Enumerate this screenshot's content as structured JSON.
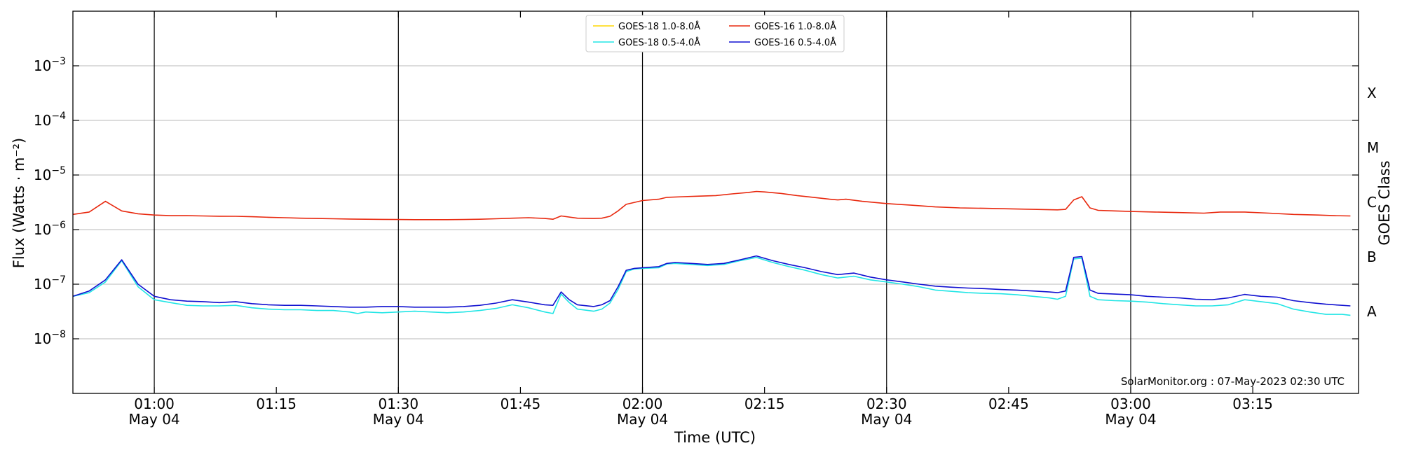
{
  "chart_data": {
    "type": "line",
    "xlabel": "Time (UTC)",
    "ylabel": "Flux (Watts · m⁻²)",
    "ylabel_right": "GOES Class",
    "yscale": "log",
    "ylim": [
      1e-09,
      0.01
    ],
    "xlim": [
      "00:50",
      "03:28"
    ],
    "y_ticks": [
      {
        "value": 1e-08,
        "base": "10",
        "exp": "−8"
      },
      {
        "value": 1e-07,
        "base": "10",
        "exp": "−7"
      },
      {
        "value": 1e-06,
        "base": "10",
        "exp": "−6"
      },
      {
        "value": 1e-05,
        "base": "10",
        "exp": "−5"
      },
      {
        "value": 0.0001,
        "base": "10",
        "exp": "−4"
      },
      {
        "value": 0.001,
        "base": "10",
        "exp": "−3"
      }
    ],
    "x_ticks": [
      {
        "time": "01:00",
        "label": "01:00",
        "date": "May 04",
        "vline": true
      },
      {
        "time": "01:15",
        "label": "01:15",
        "date": "",
        "vline": false
      },
      {
        "time": "01:30",
        "label": "01:30",
        "date": "May 04",
        "vline": true
      },
      {
        "time": "01:45",
        "label": "01:45",
        "date": "",
        "vline": false
      },
      {
        "time": "02:00",
        "label": "02:00",
        "date": "May 04",
        "vline": true
      },
      {
        "time": "02:15",
        "label": "02:15",
        "date": "",
        "vline": false
      },
      {
        "time": "02:30",
        "label": "02:30",
        "date": "May 04",
        "vline": true
      },
      {
        "time": "02:45",
        "label": "02:45",
        "date": "",
        "vline": false
      },
      {
        "time": "03:00",
        "label": "03:00",
        "date": "May 04",
        "vline": true
      },
      {
        "time": "03:15",
        "label": "03:15",
        "date": "",
        "vline": false
      }
    ],
    "goes_classes": [
      {
        "label": "A",
        "value": 3.16e-08
      },
      {
        "label": "B",
        "value": 3.16e-07
      },
      {
        "label": "C",
        "value": 3.16e-06
      },
      {
        "label": "M",
        "value": 3.16e-05
      },
      {
        "label": "X",
        "value": 0.000316
      }
    ],
    "grid": true,
    "legend_position": "top-center",
    "annotation": "SolarMonitor.org : 07-May-2023 02:30 UTC",
    "series": [
      {
        "name": "GOES-18 1.0-8.0Å",
        "color": "#ffd700",
        "points": []
      },
      {
        "name": "GOES-18 0.5-4.0Å",
        "color": "#22e5e5",
        "points": [
          [
            "00:50",
            6e-08
          ],
          [
            "00:52",
            7e-08
          ],
          [
            "00:54",
            1.1e-07
          ],
          [
            "00:56",
            2.7e-07
          ],
          [
            "00:58",
            9e-08
          ],
          [
            "01:00",
            5.2e-08
          ],
          [
            "01:02",
            4.6e-08
          ],
          [
            "01:04",
            4.1e-08
          ],
          [
            "01:06",
            4e-08
          ],
          [
            "01:08",
            4e-08
          ],
          [
            "01:10",
            4.1e-08
          ],
          [
            "01:12",
            3.7e-08
          ],
          [
            "01:14",
            3.5e-08
          ],
          [
            "01:16",
            3.4e-08
          ],
          [
            "01:18",
            3.4e-08
          ],
          [
            "01:20",
            3.3e-08
          ],
          [
            "01:22",
            3.3e-08
          ],
          [
            "01:24",
            3.1e-08
          ],
          [
            "01:25",
            2.9e-08
          ],
          [
            "01:26",
            3.1e-08
          ],
          [
            "01:28",
            3e-08
          ],
          [
            "01:30",
            3.1e-08
          ],
          [
            "01:32",
            3.2e-08
          ],
          [
            "01:34",
            3.1e-08
          ],
          [
            "01:36",
            3e-08
          ],
          [
            "01:38",
            3.1e-08
          ],
          [
            "01:40",
            3.3e-08
          ],
          [
            "01:42",
            3.6e-08
          ],
          [
            "01:44",
            4.2e-08
          ],
          [
            "01:46",
            3.7e-08
          ],
          [
            "01:48",
            3.1e-08
          ],
          [
            "01:49",
            2.9e-08
          ],
          [
            "01:50",
            6.6e-08
          ],
          [
            "01:51",
            4.6e-08
          ],
          [
            "01:52",
            3.5e-08
          ],
          [
            "01:54",
            3.2e-08
          ],
          [
            "01:55",
            3.5e-08
          ],
          [
            "01:56",
            4.5e-08
          ],
          [
            "01:57",
            8e-08
          ],
          [
            "01:58",
            1.7e-07
          ],
          [
            "01:59",
            1.9e-07
          ],
          [
            "02:00",
            1.95e-07
          ],
          [
            "02:02",
            2e-07
          ],
          [
            "02:03",
            2.35e-07
          ],
          [
            "02:04",
            2.4e-07
          ],
          [
            "02:06",
            2.3e-07
          ],
          [
            "02:08",
            2.2e-07
          ],
          [
            "02:10",
            2.3e-07
          ],
          [
            "02:12",
            2.7e-07
          ],
          [
            "02:14",
            3.1e-07
          ],
          [
            "02:16",
            2.5e-07
          ],
          [
            "02:18",
            2.1e-07
          ],
          [
            "02:20",
            1.8e-07
          ],
          [
            "02:22",
            1.5e-07
          ],
          [
            "02:24",
            1.3e-07
          ],
          [
            "02:26",
            1.4e-07
          ],
          [
            "02:28",
            1.2e-07
          ],
          [
            "02:30",
            1.1e-07
          ],
          [
            "02:32",
            1e-07
          ],
          [
            "02:34",
            9e-08
          ],
          [
            "02:36",
            7.8e-08
          ],
          [
            "02:38",
            7.4e-08
          ],
          [
            "02:40",
            7e-08
          ],
          [
            "02:42",
            6.8e-08
          ],
          [
            "02:44",
            6.7e-08
          ],
          [
            "02:46",
            6.4e-08
          ],
          [
            "02:48",
            6e-08
          ],
          [
            "02:50",
            5.6e-08
          ],
          [
            "02:51",
            5.3e-08
          ],
          [
            "02:52",
            6e-08
          ],
          [
            "02:53",
            2.9e-07
          ],
          [
            "02:54",
            3e-07
          ],
          [
            "02:55",
            6e-08
          ],
          [
            "02:56",
            5.2e-08
          ],
          [
            "02:58",
            5e-08
          ],
          [
            "03:00",
            4.9e-08
          ],
          [
            "03:02",
            4.7e-08
          ],
          [
            "03:04",
            4.4e-08
          ],
          [
            "03:06",
            4.2e-08
          ],
          [
            "03:08",
            4e-08
          ],
          [
            "03:10",
            4e-08
          ],
          [
            "03:12",
            4.2e-08
          ],
          [
            "03:14",
            5.2e-08
          ],
          [
            "03:16",
            4.8e-08
          ],
          [
            "03:18",
            4.4e-08
          ],
          [
            "03:20",
            3.5e-08
          ],
          [
            "03:22",
            3.1e-08
          ],
          [
            "03:24",
            2.8e-08
          ],
          [
            "03:26",
            2.8e-08
          ],
          [
            "03:27",
            2.7e-08
          ]
        ]
      },
      {
        "name": "GOES-16 1.0-8.0Å",
        "color": "#e8280e",
        "points": [
          [
            "00:50",
            1.9e-06
          ],
          [
            "00:52",
            2.1e-06
          ],
          [
            "00:54",
            3.3e-06
          ],
          [
            "00:56",
            2.2e-06
          ],
          [
            "00:58",
            1.95e-06
          ],
          [
            "01:00",
            1.85e-06
          ],
          [
            "01:02",
            1.8e-06
          ],
          [
            "01:04",
            1.8e-06
          ],
          [
            "01:06",
            1.78e-06
          ],
          [
            "01:08",
            1.76e-06
          ],
          [
            "01:10",
            1.75e-06
          ],
          [
            "01:12",
            1.72e-06
          ],
          [
            "01:14",
            1.68e-06
          ],
          [
            "01:16",
            1.65e-06
          ],
          [
            "01:18",
            1.62e-06
          ],
          [
            "01:20",
            1.6e-06
          ],
          [
            "01:22",
            1.58e-06
          ],
          [
            "01:24",
            1.56e-06
          ],
          [
            "01:26",
            1.55e-06
          ],
          [
            "01:28",
            1.54e-06
          ],
          [
            "01:30",
            1.53e-06
          ],
          [
            "01:32",
            1.52e-06
          ],
          [
            "01:34",
            1.52e-06
          ],
          [
            "01:36",
            1.52e-06
          ],
          [
            "01:38",
            1.53e-06
          ],
          [
            "01:40",
            1.55e-06
          ],
          [
            "01:42",
            1.58e-06
          ],
          [
            "01:44",
            1.62e-06
          ],
          [
            "01:46",
            1.65e-06
          ],
          [
            "01:48",
            1.6e-06
          ],
          [
            "01:49",
            1.55e-06
          ],
          [
            "01:50",
            1.78e-06
          ],
          [
            "01:52",
            1.62e-06
          ],
          [
            "01:54",
            1.6e-06
          ],
          [
            "01:55",
            1.62e-06
          ],
          [
            "01:56",
            1.75e-06
          ],
          [
            "01:57",
            2.2e-06
          ],
          [
            "01:58",
            2.9e-06
          ],
          [
            "02:00",
            3.4e-06
          ],
          [
            "02:02",
            3.6e-06
          ],
          [
            "02:03",
            3.9e-06
          ],
          [
            "02:05",
            4e-06
          ],
          [
            "02:07",
            4.1e-06
          ],
          [
            "02:09",
            4.2e-06
          ],
          [
            "02:11",
            4.5e-06
          ],
          [
            "02:13",
            4.8e-06
          ],
          [
            "02:14",
            5e-06
          ],
          [
            "02:15",
            4.9e-06
          ],
          [
            "02:17",
            4.6e-06
          ],
          [
            "02:19",
            4.2e-06
          ],
          [
            "02:21",
            3.9e-06
          ],
          [
            "02:23",
            3.6e-06
          ],
          [
            "02:24",
            3.5e-06
          ],
          [
            "02:25",
            3.6e-06
          ],
          [
            "02:27",
            3.3e-06
          ],
          [
            "02:30",
            3e-06
          ],
          [
            "02:33",
            2.8e-06
          ],
          [
            "02:36",
            2.6e-06
          ],
          [
            "02:39",
            2.5e-06
          ],
          [
            "02:42",
            2.45e-06
          ],
          [
            "02:45",
            2.4e-06
          ],
          [
            "02:48",
            2.35e-06
          ],
          [
            "02:51",
            2.3e-06
          ],
          [
            "02:52",
            2.35e-06
          ],
          [
            "02:53",
            3.5e-06
          ],
          [
            "02:54",
            4e-06
          ],
          [
            "02:55",
            2.5e-06
          ],
          [
            "02:56",
            2.25e-06
          ],
          [
            "02:58",
            2.2e-06
          ],
          [
            "03:00",
            2.15e-06
          ],
          [
            "03:03",
            2.1e-06
          ],
          [
            "03:06",
            2.05e-06
          ],
          [
            "03:09",
            2e-06
          ],
          [
            "03:11",
            2.1e-06
          ],
          [
            "03:14",
            2.1e-06
          ],
          [
            "03:17",
            2e-06
          ],
          [
            "03:20",
            1.9e-06
          ],
          [
            "03:23",
            1.85e-06
          ],
          [
            "03:25",
            1.8e-06
          ],
          [
            "03:27",
            1.78e-06
          ]
        ]
      },
      {
        "name": "GOES-16 0.5-4.0Å",
        "color": "#1010d0",
        "points": [
          [
            "00:50",
            6e-08
          ],
          [
            "00:52",
            7.5e-08
          ],
          [
            "00:54",
            1.2e-07
          ],
          [
            "00:56",
            2.8e-07
          ],
          [
            "00:58",
            1e-07
          ],
          [
            "01:00",
            6e-08
          ],
          [
            "01:02",
            5.2e-08
          ],
          [
            "01:04",
            4.9e-08
          ],
          [
            "01:06",
            4.8e-08
          ],
          [
            "01:08",
            4.6e-08
          ],
          [
            "01:10",
            4.8e-08
          ],
          [
            "01:12",
            4.4e-08
          ],
          [
            "01:14",
            4.2e-08
          ],
          [
            "01:16",
            4.1e-08
          ],
          [
            "01:18",
            4.1e-08
          ],
          [
            "01:20",
            4e-08
          ],
          [
            "01:22",
            3.9e-08
          ],
          [
            "01:24",
            3.8e-08
          ],
          [
            "01:26",
            3.8e-08
          ],
          [
            "01:28",
            3.9e-08
          ],
          [
            "01:30",
            3.9e-08
          ],
          [
            "01:32",
            3.8e-08
          ],
          [
            "01:34",
            3.8e-08
          ],
          [
            "01:36",
            3.8e-08
          ],
          [
            "01:38",
            3.9e-08
          ],
          [
            "01:40",
            4.1e-08
          ],
          [
            "01:42",
            4.5e-08
          ],
          [
            "01:44",
            5.2e-08
          ],
          [
            "01:46",
            4.7e-08
          ],
          [
            "01:48",
            4.2e-08
          ],
          [
            "01:49",
            4.1e-08
          ],
          [
            "01:50",
            7.2e-08
          ],
          [
            "01:51",
            5.2e-08
          ],
          [
            "01:52",
            4.2e-08
          ],
          [
            "01:54",
            3.9e-08
          ],
          [
            "01:55",
            4.2e-08
          ],
          [
            "01:56",
            5e-08
          ],
          [
            "01:57",
            9e-08
          ],
          [
            "01:58",
            1.8e-07
          ],
          [
            "01:59",
            1.95e-07
          ],
          [
            "02:00",
            2e-07
          ],
          [
            "02:02",
            2.1e-07
          ],
          [
            "02:03",
            2.4e-07
          ],
          [
            "02:04",
            2.5e-07
          ],
          [
            "02:06",
            2.4e-07
          ],
          [
            "02:08",
            2.3e-07
          ],
          [
            "02:10",
            2.4e-07
          ],
          [
            "02:12",
            2.8e-07
          ],
          [
            "02:14",
            3.3e-07
          ],
          [
            "02:16",
            2.7e-07
          ],
          [
            "02:18",
            2.3e-07
          ],
          [
            "02:20",
            2e-07
          ],
          [
            "02:22",
            1.7e-07
          ],
          [
            "02:24",
            1.5e-07
          ],
          [
            "02:26",
            1.6e-07
          ],
          [
            "02:28",
            1.35e-07
          ],
          [
            "02:30",
            1.2e-07
          ],
          [
            "02:32",
            1.1e-07
          ],
          [
            "02:34",
            1e-07
          ],
          [
            "02:36",
            9.2e-08
          ],
          [
            "02:38",
            8.8e-08
          ],
          [
            "02:40",
            8.5e-08
          ],
          [
            "02:42",
            8.3e-08
          ],
          [
            "02:44",
            8e-08
          ],
          [
            "02:46",
            7.8e-08
          ],
          [
            "02:48",
            7.5e-08
          ],
          [
            "02:50",
            7.2e-08
          ],
          [
            "02:51",
            7e-08
          ],
          [
            "02:52",
            7.5e-08
          ],
          [
            "02:53",
            3.1e-07
          ],
          [
            "02:54",
            3.2e-07
          ],
          [
            "02:55",
            7.8e-08
          ],
          [
            "02:56",
            6.8e-08
          ],
          [
            "02:58",
            6.6e-08
          ],
          [
            "03:00",
            6.4e-08
          ],
          [
            "03:02",
            6e-08
          ],
          [
            "03:04",
            5.8e-08
          ],
          [
            "03:06",
            5.6e-08
          ],
          [
            "03:08",
            5.3e-08
          ],
          [
            "03:10",
            5.2e-08
          ],
          [
            "03:12",
            5.6e-08
          ],
          [
            "03:14",
            6.5e-08
          ],
          [
            "03:16",
            6e-08
          ],
          [
            "03:18",
            5.8e-08
          ],
          [
            "03:20",
            5e-08
          ],
          [
            "03:22",
            4.6e-08
          ],
          [
            "03:24",
            4.3e-08
          ],
          [
            "03:26",
            4.1e-08
          ],
          [
            "03:27",
            4e-08
          ]
        ]
      }
    ]
  }
}
